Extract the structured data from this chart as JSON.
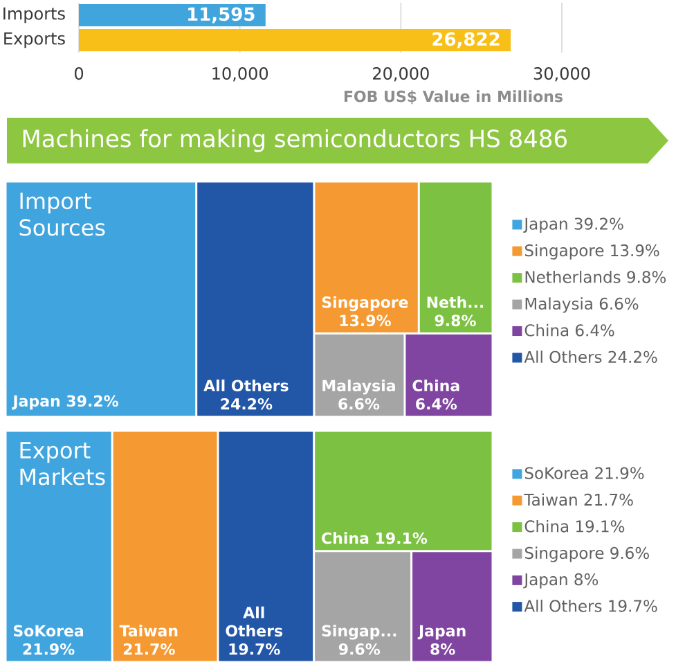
{
  "chart_data": [
    {
      "type": "bar",
      "orientation": "horizontal",
      "categories": [
        "Imports",
        "Exports"
      ],
      "values": [
        11595,
        26822
      ],
      "colors": [
        "#41a5dd",
        "#f7bf17"
      ],
      "value_labels": [
        "11,595",
        "26,822"
      ],
      "xlim": [
        0,
        30000
      ],
      "xticks": [
        0,
        {
          "value": 10000,
          "label": "10,000"
        },
        {
          "value": 20000,
          "label": "20,000"
        },
        {
          "value": 30000,
          "label": "30,000"
        }
      ],
      "xlabel": "FOB US$ Value in Millions",
      "grid": "x"
    },
    {
      "type": "other",
      "title": "Machines for making semiconductors HS 8486",
      "subtitle": "Import Sources",
      "legend": "right",
      "categories": [
        "Japan",
        "Singapore",
        "Neth...",
        "Malaysia",
        "China",
        "All Others"
      ],
      "series": [
        {
          "name": "Japan 39.2%",
          "color": "#40a4de",
          "values": [
            39.2,
            null,
            null,
            null,
            null,
            null
          ],
          "value_labels": [
            "39.2%",
            null,
            null,
            null,
            null,
            null
          ]
        },
        {
          "name": "Singapore 13.9%",
          "color": "#f59a32",
          "values": [
            null,
            13.9,
            null,
            null,
            null,
            null
          ],
          "value_labels": [
            null,
            "13.9%",
            null,
            null,
            null,
            null
          ]
        },
        {
          "name": "Netherlands 9.8%",
          "color": "#7cc142",
          "values": [
            null,
            null,
            9.8,
            null,
            null,
            null
          ],
          "value_labels": [
            null,
            null,
            "9.8%",
            null,
            null,
            null
          ]
        },
        {
          "name": "Malaysia 6.6%",
          "color": "#a5a5a5",
          "values": [
            null,
            null,
            null,
            6.6,
            null,
            null
          ],
          "value_labels": [
            null,
            null,
            null,
            "6.6%",
            null,
            null
          ]
        },
        {
          "name": "China 6.4%",
          "color": "#7f45a1",
          "values": [
            null,
            null,
            null,
            null,
            6.4,
            null
          ],
          "value_labels": [
            null,
            null,
            null,
            null,
            "6.4%",
            null
          ]
        },
        {
          "name": "All Others 24.2%",
          "color": "#2257a8",
          "values": [
            null,
            null,
            null,
            null,
            null,
            24.2
          ],
          "value_labels": [
            null,
            null,
            null,
            null,
            null,
            "24.2%"
          ]
        }
      ]
    },
    {
      "type": "other",
      "title": "Export Markets",
      "legend": "right",
      "categories": [
        "SoKorea",
        "Taiwan",
        "China",
        "Singap...",
        "Japan",
        "All Others"
      ],
      "series": [
        {
          "name": "SoKorea 21.9%",
          "color": "#40a4de",
          "values": [
            21.9,
            null,
            null,
            null,
            null,
            null
          ],
          "value_labels": [
            "21.9%",
            null,
            null,
            null,
            null,
            null
          ]
        },
        {
          "name": "Taiwan 21.7%",
          "color": "#f59a32",
          "values": [
            null,
            21.7,
            null,
            null,
            null,
            null
          ],
          "value_labels": [
            null,
            "21.7%",
            null,
            null,
            null,
            null
          ]
        },
        {
          "name": "China 19.1%",
          "color": "#7cc142",
          "values": [
            null,
            null,
            19.1,
            null,
            null,
            null
          ],
          "value_labels": [
            null,
            null,
            "19.1%",
            null,
            null,
            null
          ]
        },
        {
          "name": "Singapore 9.6%",
          "color": "#a5a5a5",
          "values": [
            null,
            null,
            null,
            9.6,
            null,
            null
          ],
          "value_labels": [
            null,
            null,
            null,
            "9.6%",
            null,
            null
          ]
        },
        {
          "name": "Japan 8%",
          "color": "#7f45a1",
          "values": [
            null,
            null,
            null,
            null,
            8,
            null
          ],
          "value_labels": [
            null,
            null,
            null,
            null,
            "8%",
            null
          ]
        },
        {
          "name": "All Others 19.7%",
          "color": "#2257a8",
          "values": [
            null,
            null,
            null,
            null,
            null,
            19.7
          ],
          "value_labels": [
            null,
            null,
            null,
            null,
            null,
            "19.7%"
          ]
        }
      ]
    }
  ]
}
